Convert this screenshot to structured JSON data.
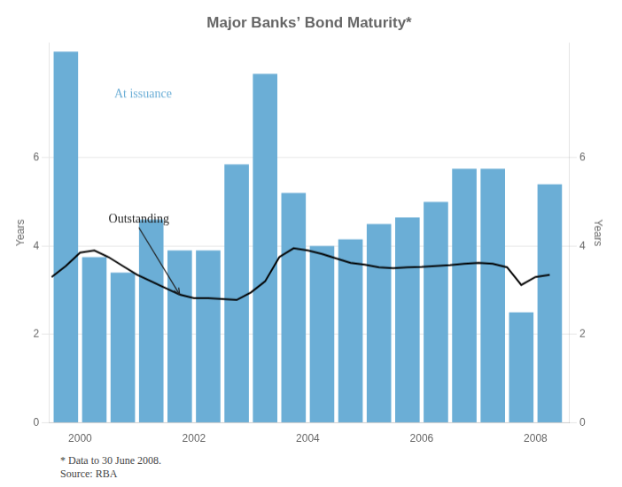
{
  "chart_data": {
    "type": "bar",
    "title": "Major Banks’ Bond Maturity*",
    "series": [
      {
        "type": "bar",
        "color": "#6baed6",
        "x": [
          1999.75,
          2000.25,
          2000.75,
          2001.25,
          2001.75,
          2002.25,
          2002.75,
          2003.25,
          2003.75,
          2004.25,
          2004.75,
          2005.25,
          2005.75,
          2006.25,
          2006.75,
          2007.25,
          2007.75,
          2008.25
        ],
        "values": [
          8.4,
          3.75,
          3.4,
          4.6,
          3.9,
          3.9,
          5.85,
          7.9,
          5.2,
          4.0,
          4.15,
          4.5,
          4.65,
          5.0,
          5.75,
          5.75,
          2.5,
          5.4
        ]
      },
      {
        "type": "line",
        "color": "#000000",
        "x": [
          1999.5,
          1999.75,
          2000.0,
          2000.25,
          2000.5,
          2000.75,
          2001.0,
          2001.25,
          2001.5,
          2001.75,
          2002.0,
          2002.25,
          2002.5,
          2002.75,
          2003.0,
          2003.25,
          2003.5,
          2003.75,
          2004.0,
          2004.25,
          2004.5,
          2004.75,
          2005.0,
          2005.25,
          2005.5,
          2005.75,
          2006.0,
          2006.25,
          2006.5,
          2006.75,
          2007.0,
          2007.25,
          2007.5,
          2007.75,
          2008.0,
          2008.25
        ],
        "values": [
          3.3,
          3.55,
          3.85,
          3.9,
          3.75,
          3.55,
          3.35,
          3.2,
          3.05,
          2.9,
          2.82,
          2.82,
          2.8,
          2.78,
          2.95,
          3.2,
          3.75,
          3.95,
          3.9,
          3.82,
          3.72,
          3.62,
          3.58,
          3.52,
          3.5,
          3.52,
          3.53,
          3.55,
          3.57,
          3.6,
          3.62,
          3.6,
          3.52,
          3.12,
          3.3,
          3.35
        ]
      }
    ],
    "xlim": [
      1999.45,
      2008.6
    ],
    "xticks": [
      2000,
      2002,
      2004,
      2006,
      2008
    ],
    "ylim": [
      0,
      8.6
    ],
    "yticks": [
      0,
      2,
      4,
      6
    ],
    "y2lim": [
      0,
      8.6
    ],
    "y2ticks": [
      0,
      2,
      4,
      6
    ],
    "ylabel": "Years",
    "y2label": "Years",
    "grid": "y",
    "annotations": [
      {
        "text": "At issuance",
        "x": 2000.6,
        "y": 7.3,
        "color": "#6baed6"
      },
      {
        "text": "Outstanding",
        "x": 2000.5,
        "y": 4.6,
        "arrow_to": [
          2001.75,
          2.9
        ]
      }
    ],
    "footnote": "*   Data to 30 June 2008.\nSource: RBA"
  }
}
